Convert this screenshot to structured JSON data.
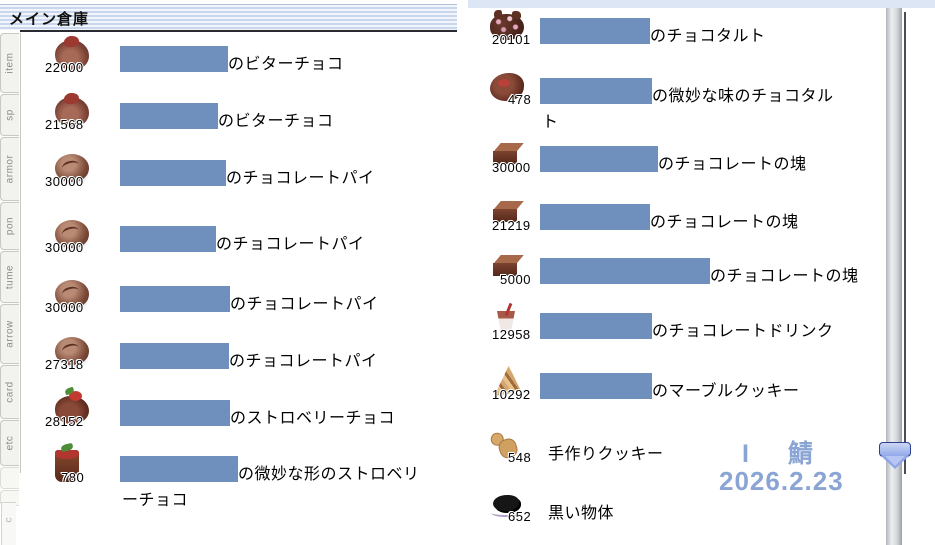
{
  "window": {
    "title": "メイン倉庫"
  },
  "tabs": {
    "items": [
      "item",
      "sp",
      "armor",
      "pon",
      "tume",
      "arrow",
      "card",
      "etc"
    ],
    "partial": "c"
  },
  "storage": {
    "left_items": [
      {
        "qty": "22000",
        "name": "のビターチョコ",
        "icon": "bitter-choco",
        "censor_w": 108
      },
      {
        "qty": "21568",
        "name": "のビターチョコ",
        "icon": "bitter-choco",
        "censor_w": 98
      },
      {
        "qty": "30000",
        "name": "のチョコレートパイ",
        "icon": "choco-pie",
        "censor_w": 106
      },
      {
        "qty": "30000",
        "name": "のチョコレートパイ",
        "icon": "choco-pie",
        "censor_w": 96
      },
      {
        "qty": "30000",
        "name": "のチョコレートパイ",
        "icon": "choco-pie",
        "censor_w": 110
      },
      {
        "qty": "27318",
        "name": "のチョコレートパイ",
        "icon": "choco-pie",
        "censor_w": 109
      },
      {
        "qty": "28152",
        "name": "のストロベリーチョコ",
        "icon": "strawberry-choco",
        "censor_w": 110
      },
      {
        "qty": "780",
        "name": "の微妙な形のストロベリ",
        "name2": "ーチョコ",
        "icon": "strawberry-cup",
        "censor_w": 118
      }
    ],
    "right_items": [
      {
        "qty": "20101",
        "name": "のチョコタルト",
        "icon": "choco-tart",
        "censor_w": 110
      },
      {
        "qty": "478",
        "name": "の微妙な味のチョコタル",
        "name2": "ト",
        "icon": "choco-tart-odd",
        "censor_w": 112
      },
      {
        "qty": "30000",
        "name": "のチョコレートの塊",
        "icon": "choco-block",
        "censor_w": 118
      },
      {
        "qty": "21219",
        "name": "のチョコレートの塊",
        "icon": "choco-block",
        "censor_w": 110
      },
      {
        "qty": "5000",
        "name": "のチョコレートの塊",
        "icon": "choco-block",
        "censor_w": 170
      },
      {
        "qty": "12958",
        "name": "のチョコレートドリンク",
        "icon": "choco-drink",
        "censor_w": 112
      },
      {
        "qty": "10292",
        "name": "のマーブルクッキー",
        "icon": "marble-cookie",
        "censor_w": 112
      },
      {
        "qty": "548",
        "name": "手作りクッキー",
        "icon": "handmade-cookie",
        "censored": false
      },
      {
        "qty": "652",
        "name": "黒い物体",
        "icon": "black-object",
        "censored": false
      }
    ]
  },
  "watermark": {
    "server": "I 鯖",
    "date": "2026.2.23"
  },
  "colors": {
    "censor": "#6f8fbc",
    "watermark": "#8aa5d3",
    "title_stripe": "#c9d7ec"
  }
}
